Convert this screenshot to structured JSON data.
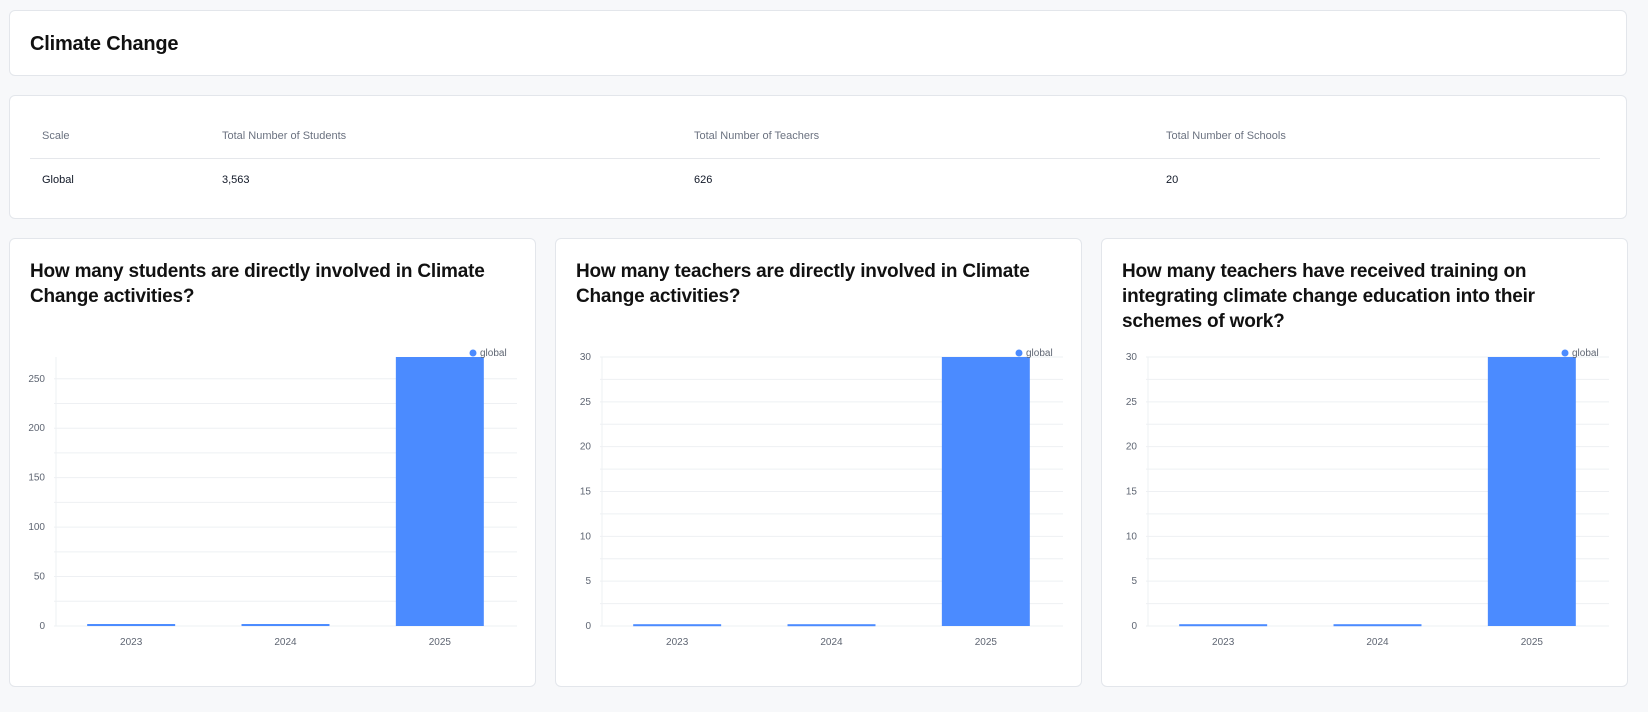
{
  "page": {
    "title": "Climate Change"
  },
  "summary": {
    "headers": [
      "Scale",
      "Total Number of Students",
      "Total Number of Teachers",
      "Total Number of Schools"
    ],
    "rows": [
      [
        "Global",
        "3,563",
        "626",
        "20"
      ]
    ]
  },
  "colors": {
    "bar": "#4b8bff",
    "grid": "#eef0f3",
    "axis_text": "#5f6673",
    "legend_text": "#5f6673"
  },
  "chart_data": [
    {
      "type": "bar",
      "title": "How many students are directly involved in Climate Change activities?",
      "categories": [
        "2023",
        "2024",
        "2025"
      ],
      "series": [
        {
          "name": "global",
          "values": [
            2,
            2,
            272
          ]
        }
      ],
      "yticks": [
        0,
        50,
        100,
        150,
        200,
        250
      ],
      "ylim": [
        0,
        272
      ],
      "grid": true,
      "legend": "top-right"
    },
    {
      "type": "bar",
      "title": "How many teachers are directly involved in Climate Change activities?",
      "categories": [
        "2023",
        "2024",
        "2025"
      ],
      "series": [
        {
          "name": "global",
          "values": [
            0.2,
            0.2,
            30
          ]
        }
      ],
      "yticks": [
        0,
        5,
        10,
        15,
        20,
        25,
        30
      ],
      "ylim": [
        0,
        30
      ],
      "grid": true,
      "legend": "top-right"
    },
    {
      "type": "bar",
      "title": "How many teachers have received training on integrating climate change education into their schemes of work?",
      "categories": [
        "2023",
        "2024",
        "2025"
      ],
      "series": [
        {
          "name": "global",
          "values": [
            0.2,
            0.2,
            30
          ]
        }
      ],
      "yticks": [
        0,
        5,
        10,
        15,
        20,
        25,
        30
      ],
      "ylim": [
        0,
        30
      ],
      "grid": true,
      "legend": "top-right"
    }
  ]
}
